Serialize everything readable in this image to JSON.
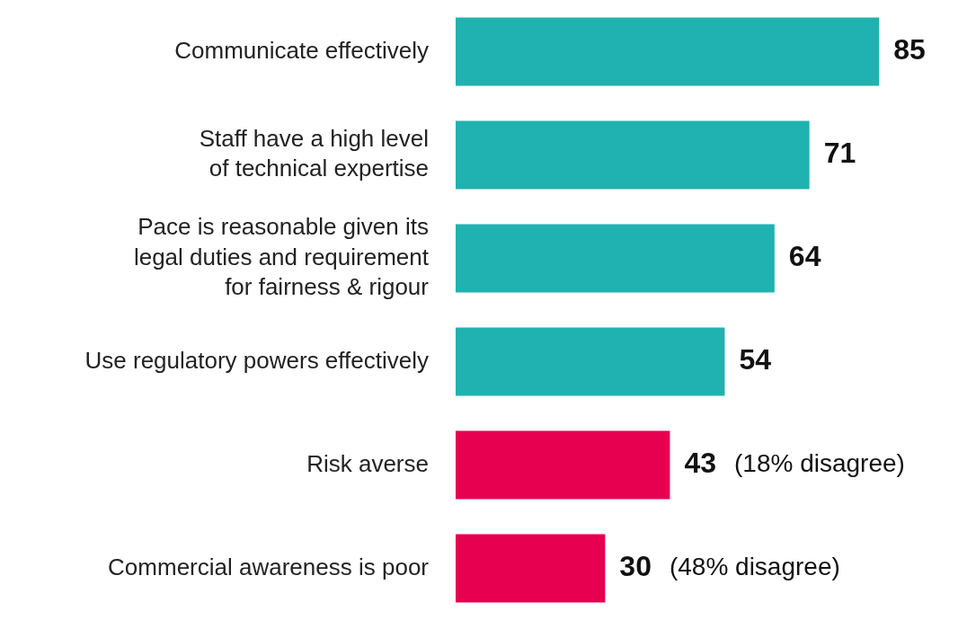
{
  "chart_data": {
    "type": "bar",
    "orientation": "horizontal",
    "categories": [
      "Communicate effectively",
      "Staff have a high level\nof technical expertise",
      "Pace is reasonable given its\nlegal duties and requirement\nfor fairness & rigour",
      "Use regulatory powers effectively",
      "Risk averse",
      "Commercial awareness is poor"
    ],
    "values": [
      85,
      71,
      64,
      54,
      43,
      30
    ],
    "colors": [
      "#20b2b0",
      "#20b2b0",
      "#20b2b0",
      "#20b2b0",
      "#e6004f",
      "#e6004f"
    ],
    "tick_labels": "y",
    "grid": false,
    "legend": false,
    "data_labels": true,
    "annotations": [
      {
        "text": "(18% disagree)",
        "x": 43,
        "y": "Risk averse"
      },
      {
        "text": "(48% disagree)",
        "x": 30,
        "y": "Commercial awareness is poor"
      }
    ]
  }
}
